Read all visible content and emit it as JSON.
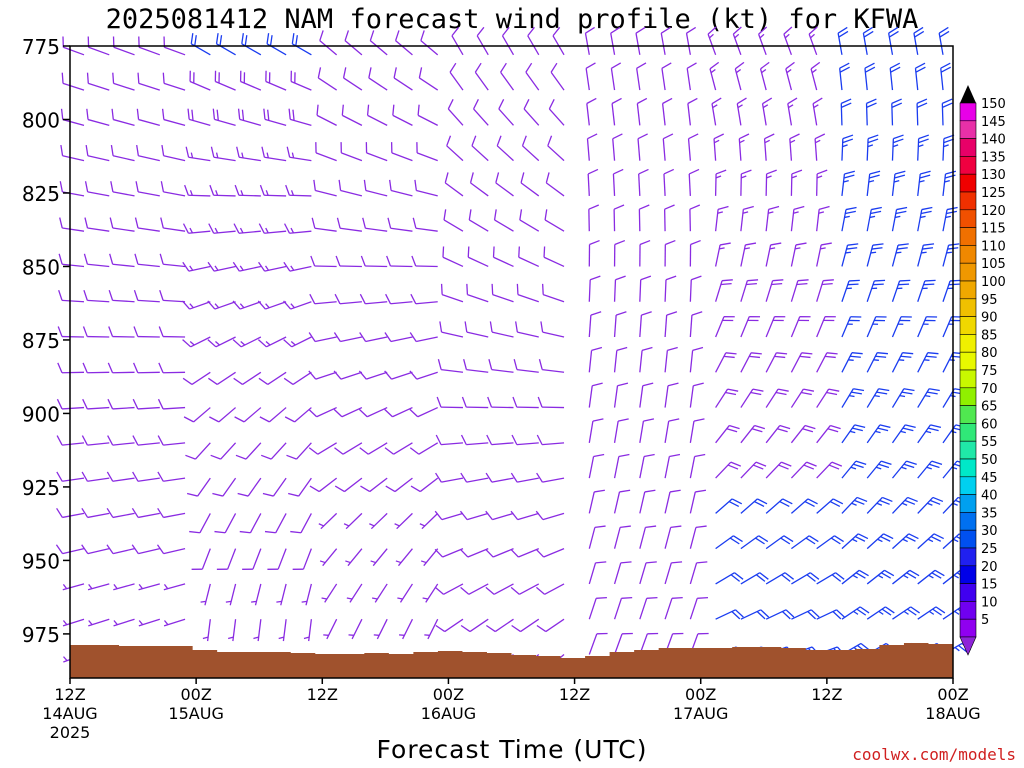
{
  "chart_data": {
    "type": "wind-barb-profile",
    "title": "2025081412 NAM forecast wind profile (kt) for KFWA",
    "xlabel": "Forecast Time (UTC)",
    "ylabel": "",
    "credit": "coolwx.com/models",
    "y_axis": {
      "scale": "pressure (hPa), inverted",
      "range": [
        990,
        775
      ],
      "ticks": [
        "775",
        "800",
        "825",
        "850",
        "875",
        "900",
        "925",
        "950",
        "975"
      ]
    },
    "x_axis": {
      "range": [
        "2025-08-14 12Z",
        "2025-08-18 00Z"
      ],
      "ticks": [
        {
          "label": "12Z",
          "date": "14AUG",
          "year": "2025"
        },
        {
          "label": "00Z",
          "date": "15AUG",
          "year": ""
        },
        {
          "label": "12Z",
          "date": "",
          "year": ""
        },
        {
          "label": "00Z",
          "date": "16AUG",
          "year": ""
        },
        {
          "label": "12Z",
          "date": "",
          "year": ""
        },
        {
          "label": "00Z",
          "date": "17AUG",
          "year": ""
        },
        {
          "label": "12Z",
          "date": "",
          "year": ""
        },
        {
          "label": "00Z",
          "date": "18AUG",
          "year": ""
        }
      ]
    },
    "levels_hpa": [
      778,
      790,
      802,
      814,
      826,
      838,
      850,
      862,
      874,
      886,
      898,
      910,
      922,
      934,
      946,
      958,
      970,
      982
    ],
    "wind_periods": [
      {
        "span": "14AUG 12Z - 15AUG 00Z",
        "upper_dir_deg": 290,
        "upper_kt": 10,
        "lower_dir_deg": 250,
        "lower_kt": 7
      },
      {
        "span": "15AUG 00Z - 15AUG 12Z",
        "upper_dir_deg": 300,
        "upper_kt": 20,
        "lower_dir_deg": 180,
        "lower_kt": 5
      },
      {
        "span": "15AUG 12Z - 16AUG 00Z",
        "upper_dir_deg": 310,
        "upper_kt": 12,
        "lower_dir_deg": 200,
        "lower_kt": 6
      },
      {
        "span": "16AUG 00Z - 16AUG 12Z",
        "upper_dir_deg": 330,
        "upper_kt": 10,
        "lower_dir_deg": 230,
        "lower_kt": 8
      },
      {
        "span": "16AUG 12Z - 17AUG 00Z",
        "upper_dir_deg": 350,
        "upper_kt": 12,
        "lower_dir_deg": 20,
        "lower_kt": 8
      },
      {
        "span": "17AUG 00Z - 17AUG 12Z",
        "upper_dir_deg": 340,
        "upper_kt": 15,
        "lower_dir_deg": 70,
        "lower_kt": 22
      },
      {
        "span": "17AUG 12Z - 18AUG 00Z",
        "upper_dir_deg": 350,
        "upper_kt": 22,
        "lower_dir_deg": 60,
        "lower_kt": 25
      }
    ],
    "colorbar": {
      "unit": "kt",
      "labels": [
        "150",
        "145",
        "140",
        "135",
        "130",
        "125",
        "120",
        "115",
        "110",
        "105",
        "100",
        "95",
        "90",
        "85",
        "80",
        "75",
        "70",
        "65",
        "60",
        "55",
        "50",
        "45",
        "40",
        "35",
        "30",
        "25",
        "20",
        "15",
        "10",
        "5"
      ],
      "colors": [
        "#e800e8",
        "#e830a8",
        "#e80068",
        "#f00040",
        "#f00000",
        "#f03000",
        "#f05000",
        "#f07000",
        "#f08800",
        "#f09800",
        "#f0a800",
        "#f0c000",
        "#f0d800",
        "#f0f000",
        "#e8f800",
        "#c8f800",
        "#90f000",
        "#50e850",
        "#30e878",
        "#20e8a8",
        "#00e8c8",
        "#00d0f0",
        "#00a0f0",
        "#0070f0",
        "#0050f0",
        "#2020f0",
        "#0000e8",
        "#4000f0",
        "#7000f0",
        "#9000f0"
      ],
      "end_colors": {
        "top": "#000000",
        "bottom": "#8e24d8"
      }
    },
    "terrain_color": "#a0522d",
    "barb_colors": {
      "weak": "#8a2be2",
      "strong": "#1a3cf0"
    }
  }
}
